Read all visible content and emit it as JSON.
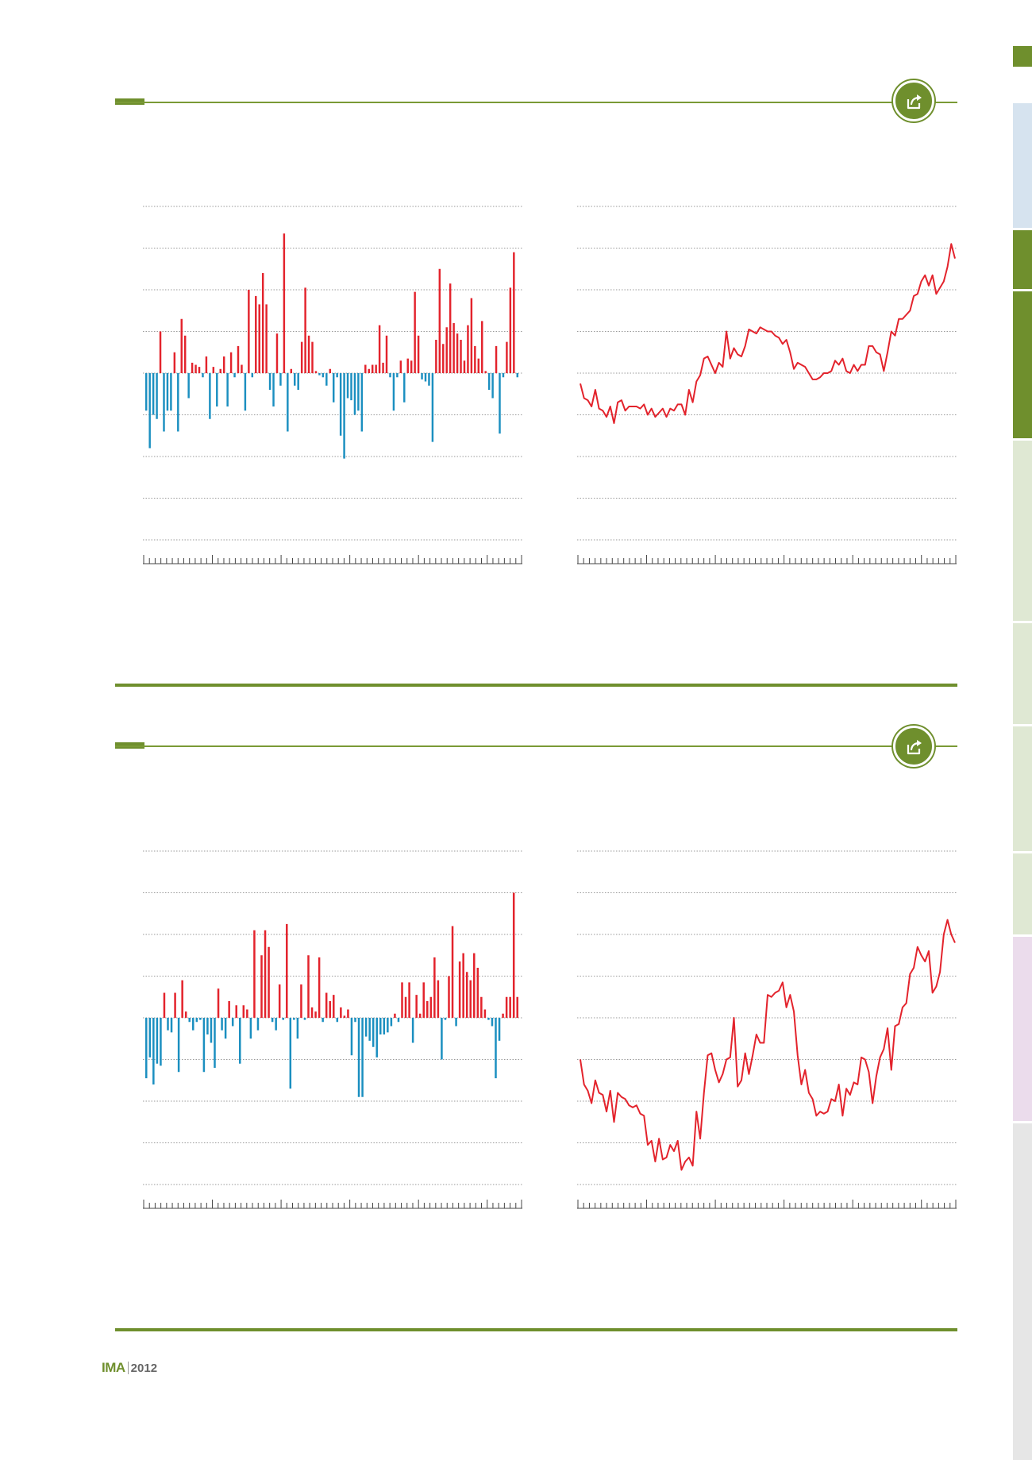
{
  "footer": {
    "logo_text": "IMA",
    "year": "2012"
  },
  "colors": {
    "accent": "#6f8f2d",
    "positive": "#e3232c",
    "negative": "#1b8fc0",
    "line": "#e3232c",
    "gridline": "#9a9a9a"
  },
  "icons": {
    "share": "share-export-icon"
  },
  "sidebar": {
    "segments": [
      {
        "color": "#6f8f2d"
      },
      {
        "color": "#d6e3ef"
      },
      {
        "color": "#6f8f2d"
      },
      {
        "color": "#6f8f2d"
      },
      {
        "color": "#dfe8d3"
      },
      {
        "color": "#dfe8d3"
      },
      {
        "color": "#dfe8d3"
      },
      {
        "color": "#dfe8d3"
      },
      {
        "color": "#ebdcec"
      },
      {
        "color": "#e6e6e6"
      }
    ]
  },
  "chart_data": [
    {
      "type": "bar",
      "grid": true,
      "gridlines": 9,
      "x_tick_count": 66,
      "values": [
        -0.9,
        -1.8,
        -1.0,
        -1.1,
        1.0,
        -1.4,
        -0.9,
        -0.9,
        0.5,
        -1.4,
        1.3,
        0.9,
        -0.6,
        0.25,
        0.2,
        0.15,
        -0.1,
        0.4,
        -1.1,
        0.15,
        -0.8,
        0.1,
        0.4,
        -0.8,
        0.5,
        -0.1,
        0.65,
        0.2,
        -0.9,
        2.0,
        -0.1,
        1.85,
        1.65,
        2.4,
        1.65,
        -0.4,
        -0.8,
        0.95,
        -0.3,
        3.35,
        -1.4,
        0.1,
        -0.3,
        -0.4,
        0.75,
        2.05,
        0.9,
        0.75,
        0.05,
        -0.05,
        -0.1,
        -0.3,
        0.1,
        -0.7,
        -0.1,
        -1.5,
        -2.05,
        -0.6,
        -0.65,
        -1.0,
        -0.9,
        -1.4,
        0.2,
        0.1,
        0.2,
        0.2,
        1.15,
        0.25,
        0.9,
        -0.1,
        -0.9,
        -0.1,
        0.3,
        -0.7,
        0.35,
        0.3,
        1.95,
        0.9,
        -0.15,
        -0.2,
        -0.3,
        -1.65,
        0.8,
        2.5,
        0.7,
        1.1,
        2.15,
        1.2,
        0.95,
        0.8,
        0.3,
        1.15,
        1.8,
        0.65,
        0.35,
        1.25,
        0.05,
        -0.4,
        -0.6,
        0.65,
        -1.45,
        -0.1,
        0.75,
        2.05,
        2.9,
        -0.1
      ]
    },
    {
      "type": "line",
      "grid": true,
      "gridlines": 9,
      "x_tick_count": 66,
      "values": [
        -0.25,
        -0.6,
        -0.65,
        -0.8,
        -0.4,
        -0.85,
        -0.9,
        -1.05,
        -0.8,
        -1.2,
        -0.7,
        -0.65,
        -0.9,
        -0.8,
        -0.8,
        -0.8,
        -0.85,
        -0.75,
        -1.0,
        -0.85,
        -1.05,
        -0.95,
        -0.85,
        -1.05,
        -0.85,
        -0.9,
        -0.75,
        -0.75,
        -1.0,
        -0.4,
        -0.7,
        -0.2,
        -0.05,
        0.35,
        0.4,
        0.2,
        0.0,
        0.25,
        0.15,
        1.0,
        0.35,
        0.6,
        0.45,
        0.4,
        0.65,
        1.05,
        1.0,
        0.95,
        1.1,
        1.05,
        1.0,
        1.0,
        0.9,
        0.85,
        0.7,
        0.8,
        0.5,
        0.1,
        0.25,
        0.2,
        0.15,
        0.0,
        -0.15,
        -0.15,
        -0.1,
        0.0,
        0.0,
        0.05,
        0.3,
        0.2,
        0.35,
        0.05,
        0.0,
        0.2,
        0.05,
        0.2,
        0.2,
        0.65,
        0.65,
        0.5,
        0.45,
        0.05,
        0.5,
        1.0,
        0.9,
        1.3,
        1.3,
        1.4,
        1.5,
        1.85,
        1.9,
        2.2,
        2.35,
        2.1,
        2.35,
        1.9,
        2.05,
        2.2,
        2.55,
        3.1,
        2.75
      ]
    },
    {
      "type": "bar",
      "grid": true,
      "gridlines": 9,
      "x_tick_count": 66,
      "values": [
        -1.45,
        -0.95,
        -1.6,
        -1.1,
        -1.15,
        0.6,
        -0.3,
        -0.35,
        0.6,
        -1.3,
        0.9,
        0.15,
        -0.1,
        -0.3,
        -0.1,
        -0.05,
        -1.3,
        -0.4,
        -0.6,
        -1.2,
        0.7,
        -0.3,
        -0.5,
        0.4,
        -0.2,
        0.3,
        -1.1,
        0.3,
        0.2,
        -0.5,
        2.1,
        -0.3,
        1.5,
        2.1,
        1.7,
        -0.1,
        -0.3,
        0.8,
        -0.05,
        2.25,
        -1.7,
        -0.05,
        -0.5,
        0.8,
        -0.05,
        1.5,
        0.25,
        0.15,
        1.45,
        -0.1,
        0.6,
        0.4,
        0.55,
        -0.1,
        0.25,
        0.05,
        0.2,
        -0.9,
        -0.1,
        -1.9,
        -1.9,
        -0.45,
        -0.55,
        -0.7,
        -0.95,
        -0.4,
        -0.4,
        -0.35,
        -0.2,
        0.1,
        -0.1,
        0.85,
        0.5,
        0.85,
        -0.6,
        0.55,
        0.1,
        0.85,
        0.4,
        0.5,
        1.45,
        0.9,
        -1.0,
        -0.05,
        1.0,
        2.2,
        -0.2,
        1.35,
        1.55,
        1.1,
        0.9,
        1.55,
        1.2,
        0.5,
        0.2,
        -0.05,
        -0.2,
        -1.45,
        -0.55,
        0.1,
        0.5,
        0.5,
        3.0,
        0.5
      ]
    },
    {
      "type": "line",
      "grid": true,
      "gridlines": 9,
      "x_tick_count": 66,
      "values": [
        -1.0,
        -1.6,
        -1.75,
        -2.05,
        -1.5,
        -1.8,
        -1.85,
        -2.25,
        -1.75,
        -2.5,
        -1.8,
        -1.9,
        -1.95,
        -2.1,
        -2.15,
        -2.1,
        -2.3,
        -2.35,
        -3.05,
        -2.95,
        -3.45,
        -2.9,
        -3.4,
        -3.35,
        -3.05,
        -3.2,
        -2.95,
        -3.65,
        -3.45,
        -3.35,
        -3.55,
        -2.25,
        -2.9,
        -1.8,
        -0.9,
        -0.85,
        -1.25,
        -1.55,
        -1.35,
        -1.0,
        -0.95,
        0.0,
        -1.65,
        -1.5,
        -0.85,
        -1.35,
        -0.9,
        -0.4,
        -0.6,
        -0.6,
        0.55,
        0.5,
        0.6,
        0.65,
        0.85,
        0.25,
        0.55,
        0.15,
        -0.9,
        -1.6,
        -1.25,
        -1.8,
        -1.95,
        -2.35,
        -2.25,
        -2.3,
        -2.25,
        -1.95,
        -2.0,
        -1.6,
        -2.35,
        -1.7,
        -1.85,
        -1.55,
        -1.6,
        -0.95,
        -1.0,
        -1.3,
        -2.05,
        -1.4,
        -0.95,
        -0.75,
        -0.25,
        -1.25,
        -0.2,
        -0.15,
        0.25,
        0.35,
        1.05,
        1.2,
        1.7,
        1.5,
        1.35,
        1.6,
        0.6,
        0.75,
        1.1,
        2.0,
        2.35,
        2.0,
        1.8
      ]
    }
  ]
}
